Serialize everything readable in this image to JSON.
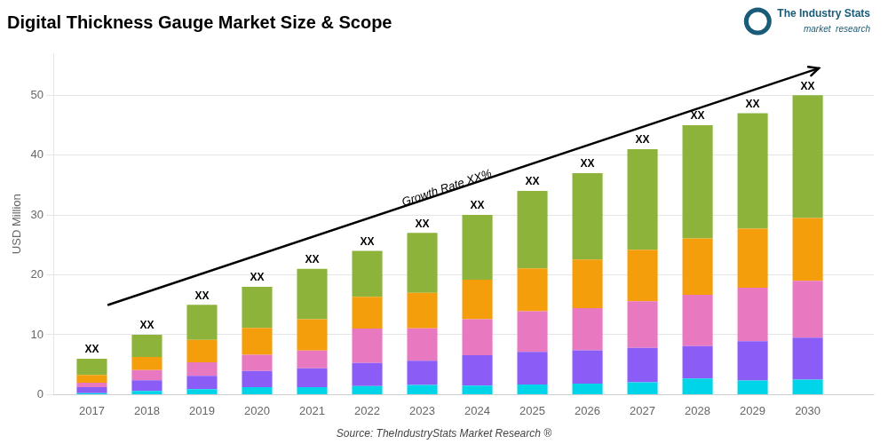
{
  "chart_data": {
    "type": "bar",
    "title": "Digital Thickness Gauge Market Size & Scope",
    "ylabel": "USD Million",
    "source": "Source: TheIndustryStats Market Research ®",
    "logo": [
      "The Industry Stats",
      "market  research"
    ],
    "logo_color": "#1a5c78",
    "x": [
      2017,
      2018,
      2019,
      2020,
      2021,
      2022,
      2023,
      2024,
      2025,
      2026,
      2027,
      2028,
      2029,
      2030
    ],
    "series": [
      {
        "color": "#00d4e8",
        "values": [
          0.24,
          0.6,
          0.9,
          1.26,
          1.26,
          1.44,
          1.62,
          1.5,
          1.7,
          1.85,
          2.05,
          2.7,
          2.35,
          2.5
        ]
      },
      {
        "color": "#8b5cf6",
        "values": [
          1.02,
          1.8,
          2.25,
          2.7,
          3.15,
          3.84,
          4.05,
          5.1,
          5.44,
          5.55,
          5.74,
          5.4,
          6.58,
          7
        ]
      },
      {
        "color": "#e879c0",
        "values": [
          0.72,
          1.7,
          2.25,
          2.7,
          2.94,
          5.76,
          5.4,
          6,
          6.8,
          7.03,
          7.79,
          8.55,
          8.93,
          9.5
        ]
      },
      {
        "color": "#f59e0b",
        "values": [
          1.32,
          2.2,
          3.75,
          4.5,
          5.25,
          5.28,
          5.94,
          6.6,
          7.14,
          8.14,
          8.61,
          9.45,
          9.87,
          10.5
        ]
      },
      {
        "color": "#8db33a",
        "values": [
          2.7,
          3.7,
          5.85,
          6.84,
          8.4,
          7.68,
          9.99,
          10.8,
          12.92,
          14.43,
          16.81,
          18.9,
          19.27,
          20.5
        ]
      }
    ],
    "stacked": true,
    "xlim": [
      2016.3,
      2031.2
    ],
    "xticks": [
      2017,
      2018,
      2019,
      2020,
      2021,
      2022,
      2023,
      2024,
      2025,
      2026,
      2027,
      2028,
      2029,
      2030
    ],
    "ylim": [
      0,
      57
    ],
    "yticks": [
      0,
      10,
      20,
      30,
      40,
      50
    ],
    "grid": true,
    "annotations": [
      {
        "text": "XX",
        "x": 2017
      },
      {
        "text": "XX",
        "x": 2018
      },
      {
        "text": "XX",
        "x": 2019
      },
      {
        "text": "XX",
        "x": 2020
      },
      {
        "text": "XX",
        "x": 2021
      },
      {
        "text": "XX",
        "x": 2022
      },
      {
        "text": "XX",
        "x": 2023
      },
      {
        "text": "XX",
        "x": 2024
      },
      {
        "text": "XX",
        "x": 2025
      },
      {
        "text": "XX",
        "x": 2026
      },
      {
        "text": "XX",
        "x": 2027
      },
      {
        "text": "XX",
        "x": 2028
      },
      {
        "text": "XX",
        "x": 2029
      },
      {
        "text": "XX",
        "x": 2030
      },
      {
        "type": "arrow",
        "x0": 2017.3,
        "y0": 15.0,
        "x1": 2030.2,
        "y1": 54.5
      },
      {
        "text": "Growth Rate XX%",
        "x": 2023.5,
        "y": 33.0
      }
    ]
  }
}
